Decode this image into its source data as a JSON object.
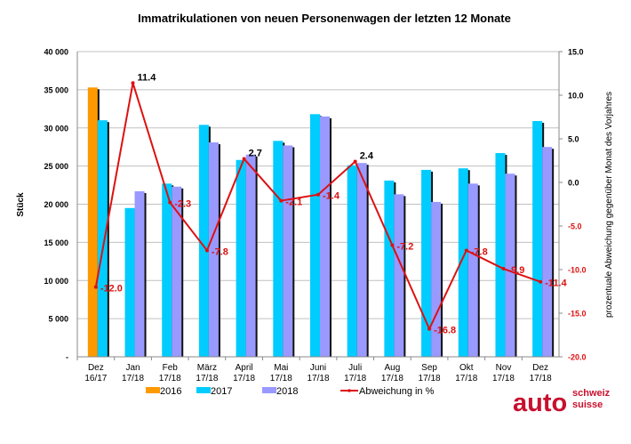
{
  "chart_data": {
    "type": "bar+line",
    "title": "Immatrikulationen von neuen Personenwagen der letzten 12 Monate",
    "ylabel": "Stück",
    "y2label": "prozentuale Abweichung gegenüber Monat des Vorjahres",
    "ylim": [
      0,
      40000
    ],
    "y2lim": [
      -20,
      15
    ],
    "yticks": [
      "-",
      "5 000",
      "10 000",
      "15 000",
      "20 000",
      "25 000",
      "30 000",
      "35 000",
      "40 000"
    ],
    "y2ticks": [
      "-20.0",
      "-15.0",
      "-10.0",
      "-5.0",
      "0.0",
      "5.0",
      "10.0",
      "15.0"
    ],
    "grid": true,
    "legend_position": "bottom",
    "categories": [
      [
        "Dez",
        "16/17"
      ],
      [
        "Jan",
        "17/18"
      ],
      [
        "Feb",
        "17/18"
      ],
      [
        "März",
        "17/18"
      ],
      [
        "April",
        "17/18"
      ],
      [
        "Mai",
        "17/18"
      ],
      [
        "Juni",
        "17/18"
      ],
      [
        "Juli",
        "17/18"
      ],
      [
        "Aug",
        "17/18"
      ],
      [
        "Sep",
        "17/18"
      ],
      [
        "Okt",
        "17/18"
      ],
      [
        "Nov",
        "17/18"
      ],
      [
        "Dez",
        "17/18"
      ]
    ],
    "series": [
      {
        "name": "2016",
        "color": "#ff9900",
        "values": [
          35300,
          null,
          null,
          null,
          null,
          null,
          null,
          null,
          null,
          null,
          null,
          null,
          null
        ]
      },
      {
        "name": "2017",
        "color": "#00ccff",
        "values": [
          31000,
          19500,
          22700,
          30400,
          25800,
          28300,
          31800,
          25100,
          23100,
          24500,
          24700,
          26700,
          30900
        ]
      },
      {
        "name": "2018",
        "color": "#9999ff",
        "values": [
          null,
          21700,
          22300,
          28100,
          26500,
          27700,
          31500,
          25400,
          21300,
          20300,
          22700,
          24000,
          27500
        ]
      },
      {
        "name": "Abweichung in %",
        "type": "line",
        "axis": "right",
        "color": "#dd1111",
        "values": [
          -12.0,
          11.4,
          -2.3,
          -7.8,
          2.7,
          -2.1,
          -1.4,
          2.4,
          -7.2,
          -16.8,
          -7.8,
          -9.9,
          -11.4
        ],
        "labels": [
          "-12.0",
          "11.4",
          "-2.3",
          "-7.8",
          "2.7",
          "-2.1",
          "-1.4",
          "2.4",
          "-7.2",
          "-16.8",
          "-7.8",
          "-9.9",
          "-11.4"
        ]
      }
    ]
  },
  "logo": {
    "main": "auto",
    "line1": "schweiz",
    "line2": "suisse",
    "color": "#c8102e"
  }
}
